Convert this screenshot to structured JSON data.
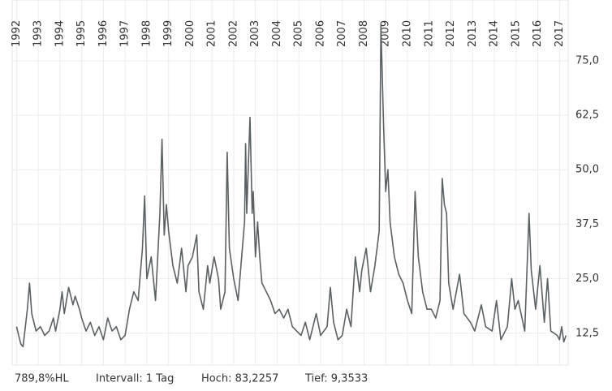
{
  "chart_data": {
    "type": "line",
    "x": [
      1992.0,
      1992.1,
      1992.2,
      1992.3,
      1992.5,
      1992.6,
      1992.7,
      1992.9,
      1993.1,
      1993.3,
      1993.5,
      1993.7,
      1993.8,
      1994.0,
      1994.1,
      1994.2,
      1994.4,
      1994.6,
      1994.7,
      1994.9,
      1995.0,
      1995.2,
      1995.4,
      1995.6,
      1995.8,
      1996.0,
      1996.2,
      1996.4,
      1996.6,
      1996.8,
      1997.0,
      1997.2,
      1997.4,
      1997.6,
      1997.8,
      1997.9,
      1998.0,
      1998.2,
      1998.4,
      1998.6,
      1998.7,
      1998.8,
      1998.9,
      1999.0,
      1999.2,
      1999.4,
      1999.6,
      1999.8,
      1999.9,
      2000.1,
      2000.3,
      2000.4,
      2000.6,
      2000.8,
      2000.9,
      2001.1,
      2001.3,
      2001.4,
      2001.6,
      2001.7,
      2001.8,
      2002.0,
      2002.2,
      2002.5,
      2002.55,
      2002.6,
      2002.75,
      2002.85,
      2002.9,
      2003.0,
      2003.1,
      2003.2,
      2003.3,
      2003.5,
      2003.7,
      2003.9,
      2004.1,
      2004.3,
      2004.5,
      2004.7,
      2004.9,
      2005.1,
      2005.3,
      2005.5,
      2005.8,
      2006.0,
      2006.3,
      2006.45,
      2006.6,
      2006.8,
      2007.0,
      2007.2,
      2007.4,
      2007.6,
      2007.8,
      2007.9,
      2008.1,
      2008.3,
      2008.5,
      2008.7,
      2008.78,
      2008.9,
      2009.0,
      2009.1,
      2009.2,
      2009.4,
      2009.6,
      2009.8,
      2010.0,
      2010.2,
      2010.35,
      2010.5,
      2010.7,
      2010.9,
      2011.1,
      2011.3,
      2011.5,
      2011.6,
      2011.7,
      2011.8,
      2011.9,
      2012.1,
      2012.4,
      2012.6,
      2012.9,
      2013.1,
      2013.4,
      2013.6,
      2013.9,
      2014.1,
      2014.3,
      2014.6,
      2014.8,
      2014.95,
      2015.1,
      2015.4,
      2015.6,
      2015.7,
      2015.9,
      2016.1,
      2016.3,
      2016.45,
      2016.6,
      2016.9,
      2017.0,
      2017.1,
      2017.2,
      2017.3
    ],
    "values": [
      14,
      12,
      10,
      9.4,
      18,
      24,
      17,
      13,
      14,
      12,
      13,
      16,
      13,
      18,
      22,
      17,
      23,
      19,
      21,
      18,
      16,
      13,
      15,
      12,
      14,
      11,
      16,
      13,
      14,
      11,
      12,
      18,
      22,
      20,
      32,
      44,
      25,
      30,
      20,
      40,
      57,
      35,
      42,
      36,
      28,
      24,
      32,
      22,
      28,
      30,
      35,
      22,
      18,
      28,
      24,
      30,
      25,
      18,
      22,
      54,
      32,
      25,
      20,
      38,
      56,
      40,
      62,
      40,
      45,
      30,
      38,
      30,
      24,
      22,
      20,
      17,
      18,
      16,
      18,
      14,
      13,
      12,
      15,
      11,
      17,
      12,
      14,
      23,
      15,
      11,
      12,
      18,
      14,
      30,
      22,
      27,
      32,
      22,
      28,
      36,
      83.2,
      60,
      45,
      50,
      38,
      30,
      26,
      24,
      20,
      17,
      45,
      30,
      22,
      18,
      18,
      16,
      20,
      48,
      42,
      40,
      24,
      18,
      26,
      17,
      15,
      13,
      19,
      14,
      13,
      20,
      11,
      14,
      25,
      18,
      20,
      13,
      40,
      27,
      18,
      28,
      15,
      25,
      13,
      12,
      11,
      14,
      10.5,
      12
    ],
    "color": "#5b6063",
    "xlim": [
      1991.8,
      2017.4
    ],
    "xticks": [
      1992,
      1993,
      1994,
      1995,
      1996,
      1997,
      1998,
      1999,
      2000,
      2001,
      2002,
      2003,
      2004,
      2005,
      2006,
      2007,
      2008,
      2009,
      2010,
      2011,
      2012,
      2013,
      2014,
      2015,
      2016,
      2017
    ],
    "ylim": [
      5.2,
      88
    ],
    "yticks": [
      {
        "value": 12.5,
        "label": "12,5"
      },
      {
        "value": 25,
        "label": "25,0"
      },
      {
        "value": 37.5,
        "label": "37,5"
      },
      {
        "value": 50,
        "label": "50,0"
      },
      {
        "value": 62.5,
        "label": "62,5"
      },
      {
        "value": 75,
        "label": "75,0"
      }
    ],
    "grid": true,
    "annotations": [
      "789,8%HL",
      "Intervall: 1 Tag",
      "Hoch: 83,2257",
      "Tief: 9,3533"
    ]
  }
}
